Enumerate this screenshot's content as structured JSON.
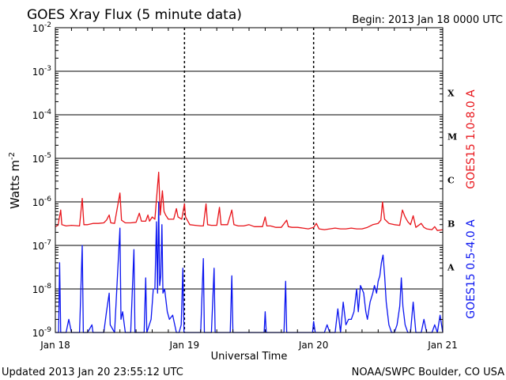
{
  "title": "GOES Xray Flux (5 minute data)",
  "begin": "Begin:  2013 Jan 18 0000 UTC",
  "footer_left": "Updated 2013 Jan 20 23:55:12 UTC",
  "footer_right": "NOAA/SWPC Boulder, CO USA",
  "chart_data": {
    "type": "line",
    "title": "GOES Xray Flux (5 minute data)",
    "xlabel": "Universal Time",
    "ylabel": "Watts m-2",
    "ylabel_main": "Watts m",
    "ylabel_sup": "-2",
    "yscale": "log",
    "ylim": [
      1e-09,
      0.01
    ],
    "xlim_hours": [
      0,
      72
    ],
    "grid": true,
    "x_ticks": [
      {
        "hour": 0,
        "label": "Jan 18"
      },
      {
        "hour": 24,
        "label": "Jan 19"
      },
      {
        "hour": 48,
        "label": "Jan 20"
      },
      {
        "hour": 72,
        "label": "Jan 21"
      }
    ],
    "y_ticks": [
      {
        "exp": -2,
        "base": "10",
        "sup": "-2"
      },
      {
        "exp": -3,
        "base": "10",
        "sup": "-3"
      },
      {
        "exp": -4,
        "base": "10",
        "sup": "-4"
      },
      {
        "exp": -5,
        "base": "10",
        "sup": "-5"
      },
      {
        "exp": -6,
        "base": "10",
        "sup": "-6"
      },
      {
        "exp": -7,
        "base": "10",
        "sup": "-7"
      },
      {
        "exp": -8,
        "base": "10",
        "sup": "-8"
      },
      {
        "exp": -9,
        "base": "10",
        "sup": "-9"
      }
    ],
    "flare_classes": [
      {
        "label": "X",
        "exp": -3.5
      },
      {
        "label": "M",
        "exp": -4.5
      },
      {
        "label": "C",
        "exp": -5.5
      },
      {
        "label": "B",
        "exp": -6.5
      },
      {
        "label": "A",
        "exp": -7.5
      }
    ],
    "series": [
      {
        "name": "GOES15 1.0-8.0 A",
        "color": "#e8141a",
        "points": [
          [
            0,
            2.7e-07
          ],
          [
            0.5,
            2.9e-07
          ],
          [
            1.0,
            6.5e-07
          ],
          [
            1.2,
            3e-07
          ],
          [
            2.0,
            2.8e-07
          ],
          [
            3.0,
            2.9e-07
          ],
          [
            4.5,
            2.8e-07
          ],
          [
            5.0,
            1.2e-06
          ],
          [
            5.3,
            3e-07
          ],
          [
            6.0,
            3e-07
          ],
          [
            7.0,
            3.2e-07
          ],
          [
            8.0,
            3.2e-07
          ],
          [
            9.0,
            3.3e-07
          ],
          [
            9.5,
            3.8e-07
          ],
          [
            10.0,
            5e-07
          ],
          [
            10.3,
            3.3e-07
          ],
          [
            11.0,
            3.2e-07
          ],
          [
            12.0,
            1.6e-06
          ],
          [
            12.3,
            3.8e-07
          ],
          [
            13.0,
            3.3e-07
          ],
          [
            14.0,
            3.3e-07
          ],
          [
            15.0,
            3.4e-07
          ],
          [
            15.6,
            5.5e-07
          ],
          [
            16.0,
            3.6e-07
          ],
          [
            16.8,
            3.6e-07
          ],
          [
            17.2,
            5e-07
          ],
          [
            17.5,
            3.6e-07
          ],
          [
            18.0,
            4.5e-07
          ],
          [
            18.5,
            4e-07
          ],
          [
            19.2,
            4.8e-06
          ],
          [
            19.5,
            5e-07
          ],
          [
            19.9,
            1.8e-06
          ],
          [
            20.2,
            6e-07
          ],
          [
            20.5,
            5e-07
          ],
          [
            21.0,
            4e-07
          ],
          [
            22.0,
            4e-07
          ],
          [
            22.5,
            7e-07
          ],
          [
            22.8,
            4.5e-07
          ],
          [
            23.5,
            4e-07
          ],
          [
            24.0,
            9e-07
          ],
          [
            24.2,
            4.5e-07
          ],
          [
            25.0,
            3e-07
          ],
          [
            26.0,
            2.9e-07
          ],
          [
            27.0,
            2.8e-07
          ],
          [
            27.5,
            2.8e-07
          ],
          [
            28.0,
            9e-07
          ],
          [
            28.3,
            3e-07
          ],
          [
            29.0,
            2.9e-07
          ],
          [
            30.0,
            2.9e-07
          ],
          [
            30.5,
            7.5e-07
          ],
          [
            30.8,
            3e-07
          ],
          [
            32.0,
            3e-07
          ],
          [
            32.8,
            6.5e-07
          ],
          [
            33.2,
            3e-07
          ],
          [
            34.0,
            2.8e-07
          ],
          [
            35.0,
            2.8e-07
          ],
          [
            36.0,
            3e-07
          ],
          [
            37.0,
            2.7e-07
          ],
          [
            38.5,
            2.7e-07
          ],
          [
            39.0,
            4.5e-07
          ],
          [
            39.3,
            2.8e-07
          ],
          [
            40.0,
            2.8e-07
          ],
          [
            41.0,
            2.6e-07
          ],
          [
            42.0,
            2.6e-07
          ],
          [
            43.0,
            3.8e-07
          ],
          [
            43.3,
            2.7e-07
          ],
          [
            44.0,
            2.6e-07
          ],
          [
            45.0,
            2.6e-07
          ],
          [
            46.0,
            2.5e-07
          ],
          [
            47.0,
            2.4e-07
          ],
          [
            48.0,
            2.6e-07
          ],
          [
            48.5,
            3.2e-07
          ],
          [
            49.0,
            2.4e-07
          ],
          [
            50.0,
            2.3e-07
          ],
          [
            51.0,
            2.4e-07
          ],
          [
            52.0,
            2.5e-07
          ],
          [
            53.0,
            2.4e-07
          ],
          [
            54.0,
            2.4e-07
          ],
          [
            55.0,
            2.5e-07
          ],
          [
            56.0,
            2.4e-07
          ],
          [
            57.0,
            2.4e-07
          ],
          [
            58.0,
            2.6e-07
          ],
          [
            59.0,
            3e-07
          ],
          [
            60.0,
            3.2e-07
          ],
          [
            60.5,
            3.8e-07
          ],
          [
            60.8,
            1e-06
          ],
          [
            61.2,
            4e-07
          ],
          [
            62.0,
            3.2e-07
          ],
          [
            63.0,
            3e-07
          ],
          [
            64.0,
            2.9e-07
          ],
          [
            64.5,
            6.5e-07
          ],
          [
            65.0,
            4.5e-07
          ],
          [
            65.5,
            3.5e-07
          ],
          [
            66.0,
            3e-07
          ],
          [
            66.5,
            4.8e-07
          ],
          [
            67.0,
            2.6e-07
          ],
          [
            68.0,
            3.2e-07
          ],
          [
            68.5,
            2.6e-07
          ],
          [
            69.0,
            2.4e-07
          ],
          [
            70.0,
            2.3e-07
          ],
          [
            70.5,
            2.7e-07
          ],
          [
            71.0,
            2.2e-07
          ],
          [
            72.0,
            2.3e-07
          ]
        ]
      },
      {
        "name": "GOES15 0.5-4.0 A",
        "color": "#0a14f0",
        "points": [
          [
            0,
            1e-09
          ],
          [
            0.6,
            1e-09
          ],
          [
            0.8,
            4e-08
          ],
          [
            1.0,
            1e-09
          ],
          [
            2.0,
            1e-09
          ],
          [
            2.5,
            2e-09
          ],
          [
            3.0,
            1e-09
          ],
          [
            4.5,
            1e-09
          ],
          [
            5.0,
            1e-07
          ],
          [
            5.2,
            1e-09
          ],
          [
            6.0,
            1e-09
          ],
          [
            6.8,
            1.5e-09
          ],
          [
            7.0,
            1e-09
          ],
          [
            8.0,
            1e-09
          ],
          [
            9.0,
            1e-09
          ],
          [
            9.5,
            3e-09
          ],
          [
            10.0,
            8e-09
          ],
          [
            10.2,
            1.5e-09
          ],
          [
            11.0,
            1e-09
          ],
          [
            12.0,
            2.5e-07
          ],
          [
            12.2,
            2e-09
          ],
          [
            12.5,
            3e-09
          ],
          [
            13.0,
            1e-09
          ],
          [
            14.0,
            1e-09
          ],
          [
            14.6,
            8e-08
          ],
          [
            14.8,
            1e-09
          ],
          [
            15.5,
            1e-09
          ],
          [
            16.5,
            1e-09
          ],
          [
            16.8,
            1.8e-08
          ],
          [
            17.0,
            1e-09
          ],
          [
            17.8,
            2e-09
          ],
          [
            18.2,
            1e-08
          ],
          [
            18.5,
            1e-08
          ],
          [
            18.8,
            3.5e-07
          ],
          [
            19.0,
            8e-09
          ],
          [
            19.2,
            1e-06
          ],
          [
            19.4,
            1.2e-08
          ],
          [
            19.6,
            2e-08
          ],
          [
            19.8,
            3e-07
          ],
          [
            20.0,
            8e-09
          ],
          [
            20.3,
            1e-08
          ],
          [
            20.8,
            3e-09
          ],
          [
            21.2,
            2e-09
          ],
          [
            21.8,
            2.5e-09
          ],
          [
            22.5,
            1e-09
          ],
          [
            23.0,
            1e-09
          ],
          [
            23.4,
            1.5e-09
          ],
          [
            23.7,
            3e-08
          ],
          [
            23.9,
            1e-09
          ],
          [
            24.5,
            1e-09
          ],
          [
            25.5,
            1e-09
          ],
          [
            26.5,
            1e-09
          ],
          [
            27.0,
            1e-09
          ],
          [
            27.5,
            5e-08
          ],
          [
            27.7,
            1e-09
          ],
          [
            28.5,
            1e-09
          ],
          [
            29.0,
            1e-09
          ],
          [
            29.5,
            3e-08
          ],
          [
            29.7,
            1e-09
          ],
          [
            30.5,
            1e-09
          ],
          [
            31.5,
            1e-09
          ],
          [
            32.5,
            1e-09
          ],
          [
            32.8,
            2e-08
          ],
          [
            33.0,
            1e-09
          ],
          [
            34.0,
            1e-09
          ],
          [
            35.0,
            1e-09
          ],
          [
            36.0,
            1e-09
          ],
          [
            37.0,
            1e-09
          ],
          [
            38.0,
            1e-09
          ],
          [
            38.8,
            1e-09
          ],
          [
            39.0,
            3e-09
          ],
          [
            39.2,
            1e-09
          ],
          [
            40.0,
            1e-09
          ],
          [
            41.0,
            1e-09
          ],
          [
            42.0,
            1e-09
          ],
          [
            42.5,
            1e-09
          ],
          [
            42.8,
            1.5e-08
          ],
          [
            43.0,
            1e-09
          ],
          [
            44.0,
            1e-09
          ],
          [
            45.0,
            1e-09
          ],
          [
            46.0,
            1e-09
          ],
          [
            47.0,
            1e-09
          ],
          [
            47.8,
            1e-09
          ],
          [
            48.0,
            1.8e-09
          ],
          [
            48.3,
            1e-09
          ],
          [
            49.0,
            1e-09
          ],
          [
            50.0,
            1e-09
          ],
          [
            50.5,
            1.5e-09
          ],
          [
            51.0,
            1e-09
          ],
          [
            52.0,
            1e-09
          ],
          [
            52.5,
            3.5e-09
          ],
          [
            53.0,
            1e-09
          ],
          [
            53.5,
            5e-09
          ],
          [
            54.0,
            1.5e-09
          ],
          [
            54.5,
            2e-09
          ],
          [
            55.0,
            2e-09
          ],
          [
            55.5,
            3e-09
          ],
          [
            56.0,
            1e-08
          ],
          [
            56.3,
            3e-09
          ],
          [
            56.7,
            1.2e-08
          ],
          [
            57.0,
            1e-08
          ],
          [
            57.3,
            8e-09
          ],
          [
            57.7,
            3e-09
          ],
          [
            58.0,
            2e-09
          ],
          [
            58.5,
            5e-09
          ],
          [
            59.0,
            8e-09
          ],
          [
            59.3,
            1.2e-08
          ],
          [
            59.7,
            8e-09
          ],
          [
            60.0,
            1.5e-08
          ],
          [
            60.3,
            2e-08
          ],
          [
            60.6,
            4e-08
          ],
          [
            60.9,
            6e-08
          ],
          [
            61.2,
            2e-08
          ],
          [
            61.5,
            5e-09
          ],
          [
            62.0,
            1.5e-09
          ],
          [
            62.5,
            1e-09
          ],
          [
            63.0,
            1e-09
          ],
          [
            63.5,
            1.5e-09
          ],
          [
            64.0,
            4e-09
          ],
          [
            64.3,
            1.8e-08
          ],
          [
            64.6,
            4e-09
          ],
          [
            65.0,
            1.5e-09
          ],
          [
            65.5,
            1e-09
          ],
          [
            66.0,
            1e-09
          ],
          [
            66.5,
            5e-09
          ],
          [
            67.0,
            1e-09
          ],
          [
            68.0,
            1e-09
          ],
          [
            68.5,
            2e-09
          ],
          [
            69.0,
            1e-09
          ],
          [
            70.0,
            1e-09
          ],
          [
            70.5,
            1.5e-09
          ],
          [
            71.0,
            1e-09
          ],
          [
            71.5,
            2.5e-09
          ],
          [
            72.0,
            1e-09
          ]
        ]
      }
    ]
  }
}
